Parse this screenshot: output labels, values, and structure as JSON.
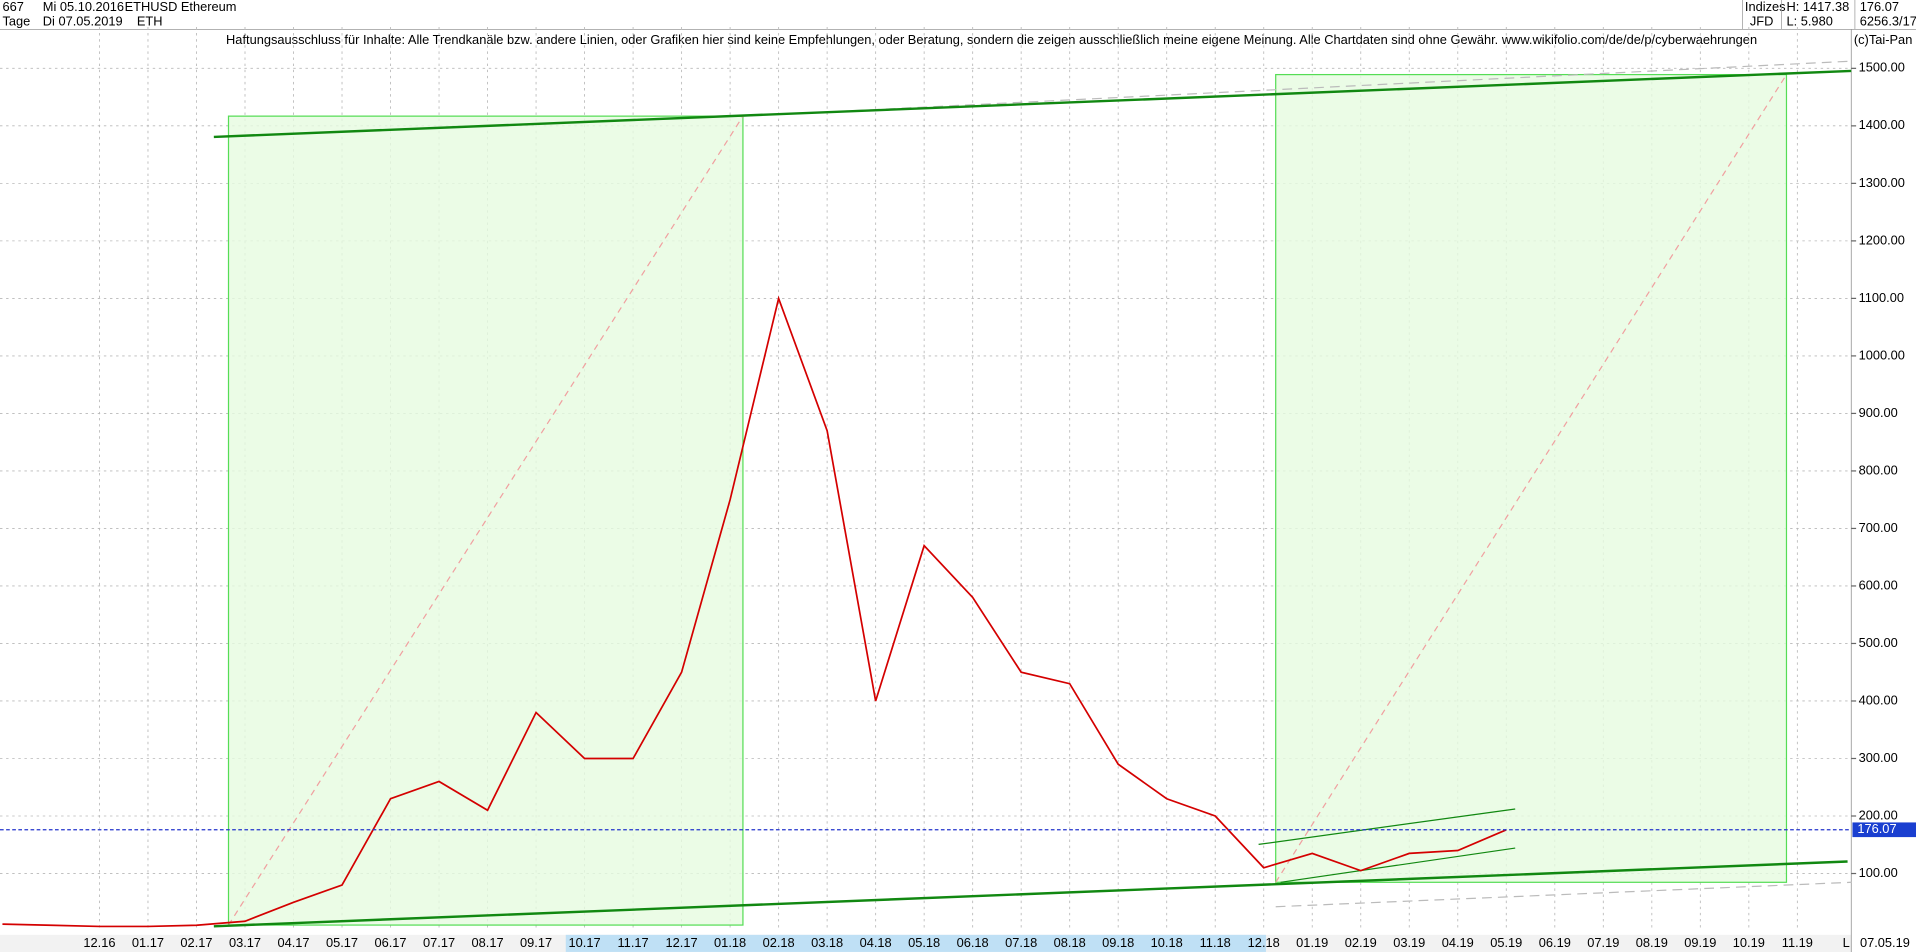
{
  "header": {
    "count": "667",
    "start_date": "Mi 05.10.2016",
    "period": "Tage",
    "end_date": "Di 07.05.2019",
    "symbol": "ETHUSD",
    "short": "ETH",
    "name": "Ethereum",
    "group": "Indizes",
    "broker": "JFD",
    "high": "H: 1417.38",
    "low": "L: 5.980",
    "volume": "6256.3/17",
    "disclaimer": "Haftungsausschluss für Inhalte: Alle Trendkanäle bzw. andere Linien, oder Grafiken hier sind keine Empfehlungen, oder Beratung, sondern die zeigen ausschließlich meine eigene Meinung. Alle Chartdaten sind ohne Gewähr.  www.wikifolio.com/de/de/p/cyberwaehrungen",
    "copyright": "(c)Tai-Pan"
  },
  "chart_data": {
    "type": "line",
    "categories": [
      null,
      null,
      "12.16",
      "01.17",
      "02.17",
      "03.17",
      "04.17",
      "05.17",
      "06.17",
      "07.17",
      "08.17",
      "09.17",
      "10.17",
      "11.17",
      "12.17",
      "01.18",
      "02.18",
      "03.18",
      "04.18",
      "05.18",
      "06.18",
      "07.18",
      "08.18",
      "09.18",
      "10.18",
      "11.18",
      "12.18",
      "01.19",
      "02.19",
      "03.19",
      "04.19",
      "05.19",
      "06.19",
      "07.19",
      "08.19",
      "09.19",
      "10.19",
      "11.19"
    ],
    "series": [
      {
        "name": "ETHUSD",
        "color": "#d40000",
        "values": [
          12,
          10,
          8,
          8,
          10,
          17,
          50,
          80,
          230,
          260,
          210,
          380,
          300,
          300,
          450,
          750,
          1100,
          870,
          400,
          670,
          580,
          450,
          430,
          290,
          230,
          200,
          110,
          135,
          105,
          135,
          140,
          176,
          null,
          null,
          null,
          null,
          null,
          null
        ]
      }
    ],
    "ylim": [
      4,
      1572
    ],
    "yticks": [
      {
        "value": 100,
        "label": "100.00"
      },
      {
        "value": 200,
        "label": "200.00"
      },
      {
        "value": 300,
        "label": "300.00"
      },
      {
        "value": 400,
        "label": "400.00"
      },
      {
        "value": 500,
        "label": "500.00"
      },
      {
        "value": 600,
        "label": "600.00"
      },
      {
        "value": 700,
        "label": "700.00"
      },
      {
        "value": 800,
        "label": "800.00"
      },
      {
        "value": 900,
        "label": "900.00"
      },
      {
        "value": 1000,
        "label": "1000.00"
      },
      {
        "value": 1100,
        "label": "1100.00"
      },
      {
        "value": 1200,
        "label": "1200.00"
      },
      {
        "value": 1300,
        "label": "1300.00"
      },
      {
        "value": 1400,
        "label": "1400.00"
      },
      {
        "value": 1500,
        "label": "1500.00"
      }
    ],
    "last_price": 176.07,
    "last_date": "07.05.19",
    "scale_mode": "L",
    "grid": true
  }
}
